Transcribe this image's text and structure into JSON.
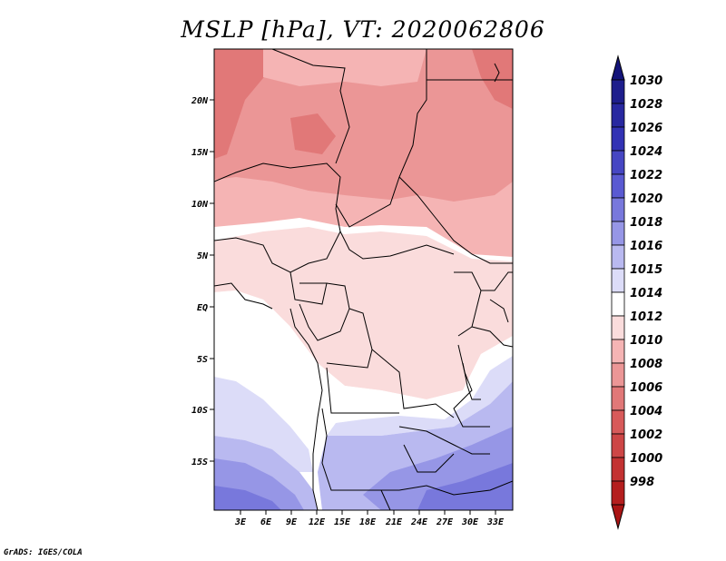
{
  "title": "MSLP [hPa], VT: 2020062806",
  "footer": "GrADS: IGES/COLA",
  "map": {
    "region": "Central and Southern-Central Africa",
    "lat_ticks": [
      "20N",
      "15N",
      "10N",
      "5N",
      "EQ",
      "5S",
      "10S",
      "15S"
    ],
    "lon_ticks": [
      "3E",
      "6E",
      "9E",
      "12E",
      "15E",
      "18E",
      "21E",
      "24E",
      "27E",
      "30E",
      "33E"
    ]
  },
  "colorbar": {
    "levels": [
      "1030",
      "1028",
      "1026",
      "1024",
      "1022",
      "1020",
      "1018",
      "1016",
      "1015",
      "1014",
      "1012",
      "1010",
      "1008",
      "1006",
      "1004",
      "1002",
      "1000",
      "998"
    ],
    "colors": [
      "#1e1e8c",
      "#2828a0",
      "#3232b4",
      "#4646c3",
      "#5a5ad2",
      "#7878dc",
      "#9696e6",
      "#b9b9f0",
      "#dcdcf8",
      "#ffffff",
      "#fadcdc",
      "#f5b4b4",
      "#eb9696",
      "#e17878",
      "#d75a5a",
      "#cd4646",
      "#c33232",
      "#b41e1e"
    ],
    "top_arrow_color": "#14147a",
    "bottom_arrow_color": "#aa1414"
  }
}
